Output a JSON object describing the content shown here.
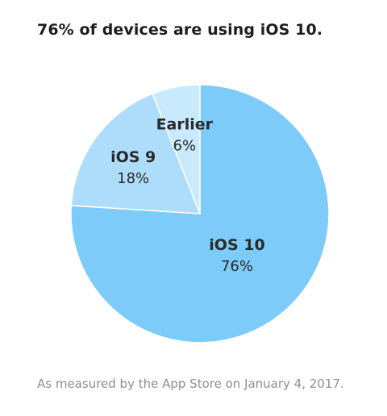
{
  "title": "76% of devices are using iOS 10.",
  "footnote": "As measured by the App Store on January 4, 2017.",
  "chart_data": {
    "type": "pie",
    "title": "76% of devices are using iOS 10.",
    "slices": [
      {
        "label": "iOS 10",
        "value": 76,
        "display": "76%",
        "color": "#7dcbf9"
      },
      {
        "label": "iOS 9",
        "value": 18,
        "display": "18%",
        "color": "#aeddfb"
      },
      {
        "label": "Earlier",
        "value": 6,
        "display": "6%",
        "color": "#c9e9fd"
      }
    ],
    "note": "As measured by the App Store on January 4, 2017."
  }
}
